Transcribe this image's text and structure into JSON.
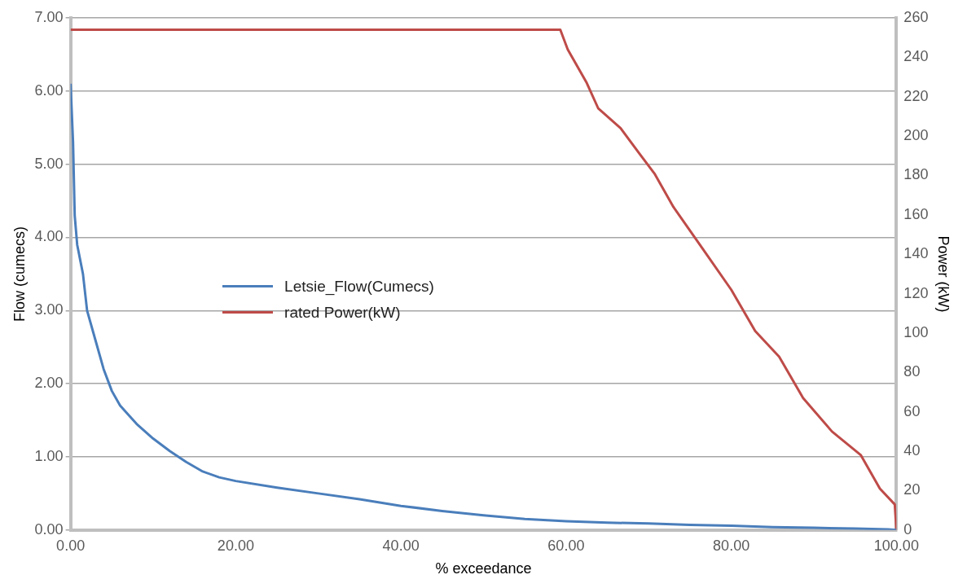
{
  "chart_data": {
    "type": "line",
    "xlabel": "% exceedance",
    "ylabel": "Flow (cumecs)",
    "y2label": "Power (kW)",
    "xlim": [
      0,
      100
    ],
    "xticks": [
      {
        "value": 0,
        "label": "0.00"
      },
      {
        "value": 20,
        "label": "20.00"
      },
      {
        "value": 40,
        "label": "40.00"
      },
      {
        "value": 60,
        "label": "60.00"
      },
      {
        "value": 80,
        "label": "80.00"
      },
      {
        "value": 100,
        "label": "100.00"
      }
    ],
    "ylim": [
      0,
      7
    ],
    "yticks": [
      {
        "value": 0,
        "label": "0.00"
      },
      {
        "value": 1,
        "label": "1.00"
      },
      {
        "value": 2,
        "label": "2.00"
      },
      {
        "value": 3,
        "label": "3.00"
      },
      {
        "value": 4,
        "label": "4.00"
      },
      {
        "value": 5,
        "label": "5.00"
      },
      {
        "value": 6,
        "label": "6.00"
      },
      {
        "value": 7,
        "label": "7.00"
      }
    ],
    "y2lim": [
      0,
      260
    ],
    "y2ticks": [
      0,
      20,
      40,
      60,
      80,
      100,
      120,
      140,
      160,
      180,
      200,
      220,
      240,
      260
    ],
    "grid": "y",
    "legend": "center",
    "marker": "none",
    "line_style": "solid",
    "series": [
      {
        "name": "Letsie_Flow(Cumecs)",
        "color": "#4a7ebb",
        "x": [
          0,
          0.3,
          0.5,
          0.8,
          1.5,
          2,
          3,
          4,
          5,
          6,
          8,
          10,
          12,
          14,
          16,
          18,
          20,
          25,
          30,
          35,
          40,
          45,
          50,
          55,
          60,
          65,
          70,
          75,
          80,
          85,
          90,
          95,
          99,
          100
        ],
        "values": [
          6.1,
          5.3,
          4.3,
          3.9,
          3.5,
          3.0,
          2.6,
          2.2,
          1.9,
          1.7,
          1.45,
          1.25,
          1.08,
          0.93,
          0.8,
          0.72,
          0.67,
          0.58,
          0.5,
          0.42,
          0.33,
          0.26,
          0.2,
          0.15,
          0.12,
          0.1,
          0.09,
          0.07,
          0.06,
          0.04,
          0.03,
          0.02,
          0.01,
          0
        ]
      },
      {
        "name": "rated Power(kW)",
        "color": "#be4b48",
        "axis": "y2",
        "x": [
          0,
          59.3,
          60.2,
          62.5,
          63.9,
          66.6,
          68.9,
          70.7,
          73,
          76.5,
          80,
          82.9,
          85.8,
          88.7,
          92.2,
          95.7,
          98,
          99.8,
          100
        ],
        "values": [
          254,
          254,
          244,
          227,
          214,
          204,
          191,
          181,
          164,
          143,
          122,
          101,
          88,
          67,
          50,
          38,
          21,
          13,
          0
        ]
      }
    ]
  }
}
